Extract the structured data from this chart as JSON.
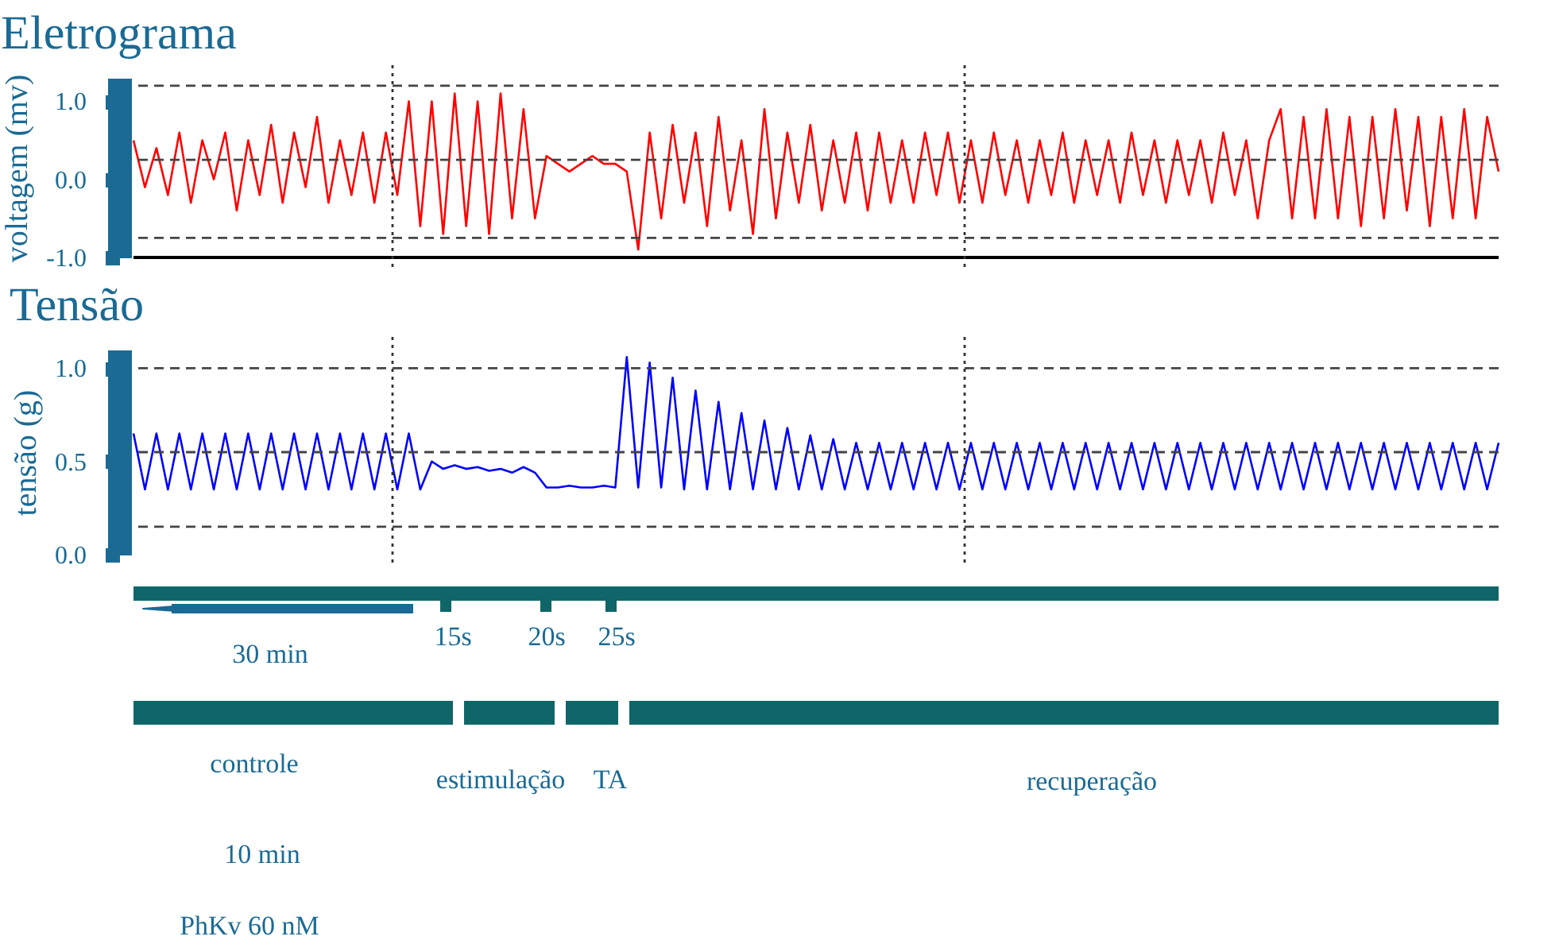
{
  "chart_data": [
    {
      "type": "line",
      "title": "Eletrograma",
      "ylabel": "voltagem (mv)",
      "categories": [
        null,
        null,
        null,
        null,
        null,
        null,
        null,
        null,
        null,
        null,
        null,
        null,
        null,
        null,
        null,
        null,
        null,
        null,
        null,
        null,
        null,
        null,
        null,
        null,
        null,
        null,
        null,
        null,
        null,
        null,
        null,
        null,
        null,
        null,
        null,
        null,
        null,
        null,
        null,
        null,
        null,
        null,
        null,
        null,
        null,
        null,
        null,
        null,
        null,
        null,
        null,
        null,
        null,
        null,
        null,
        null,
        null,
        null,
        null,
        null,
        null,
        null,
        null,
        null,
        null,
        null,
        null,
        null,
        null,
        null,
        null,
        null,
        null,
        null,
        null,
        null,
        null,
        null,
        null,
        null,
        null,
        null,
        null,
        null,
        null,
        null,
        null,
        null,
        null,
        null,
        null,
        null,
        null,
        null,
        null,
        null,
        null,
        null,
        null,
        null,
        null,
        null,
        null,
        null,
        null,
        null,
        null,
        null,
        null,
        null,
        null,
        null,
        null,
        null,
        null,
        null,
        null,
        null,
        null,
        null
      ],
      "series": [
        {
          "color": "#ff0000",
          "values": [
            0.5,
            -0.1,
            0.4,
            -0.2,
            0.6,
            -0.3,
            0.5,
            0.0,
            0.6,
            -0.4,
            0.5,
            -0.2,
            0.7,
            -0.3,
            0.6,
            -0.1,
            0.8,
            -0.3,
            0.5,
            -0.2,
            0.6,
            -0.3,
            0.6,
            -0.2,
            1.0,
            -0.6,
            1.0,
            -0.7,
            1.1,
            -0.6,
            1.0,
            -0.7,
            1.1,
            -0.5,
            0.9,
            -0.5,
            0.3,
            0.2,
            0.1,
            0.2,
            0.3,
            0.2,
            0.2,
            0.1,
            -0.9,
            0.6,
            -0.5,
            0.7,
            -0.3,
            0.6,
            -0.6,
            0.8,
            -0.4,
            0.5,
            -0.7,
            0.9,
            -0.5,
            0.6,
            -0.3,
            0.7,
            -0.4,
            0.5,
            -0.3,
            0.6,
            -0.4,
            0.6,
            -0.3,
            0.5,
            -0.3,
            0.6,
            -0.2,
            0.6,
            -0.3,
            0.5,
            -0.3,
            0.6,
            -0.2,
            0.5,
            -0.3,
            0.5,
            -0.2,
            0.6,
            -0.3,
            0.5,
            -0.2,
            0.5,
            -0.3,
            0.6,
            -0.2,
            0.5,
            -0.3,
            0.5,
            -0.2,
            0.5,
            -0.3,
            0.6,
            -0.2,
            0.5,
            -0.5,
            0.5,
            0.9,
            -0.5,
            0.8,
            -0.5,
            0.9,
            -0.5,
            0.8,
            -0.6,
            0.8,
            -0.5,
            0.9,
            -0.4,
            0.8,
            -0.6,
            0.8,
            -0.5,
            0.9,
            -0.5,
            0.8,
            0.1
          ]
        }
      ],
      "ylim": [
        -1.0,
        1.3
      ],
      "yticks": [
        {
          "value": 1,
          "label": "1.0"
        },
        {
          "value": 0,
          "label": "0.0"
        },
        {
          "value": -1,
          "label": "-1.0"
        }
      ],
      "ref_lines": [
        {
          "axis": "y",
          "value": 1.2,
          "line_style": "dashed",
          "color": "#444444"
        },
        {
          "axis": "y",
          "value": 0.25,
          "line_style": "dashed",
          "color": "#444444"
        },
        {
          "axis": "y",
          "value": -0.75,
          "line_style": "dashed",
          "color": "#444444"
        },
        {
          "axis": "y",
          "value": -1.0,
          "line_style": "solid",
          "color": "#000000"
        }
      ],
      "tick_labels": "y",
      "line_style": "solid"
    },
    {
      "type": "line",
      "title": "Tensão",
      "ylabel": "tensão (g)",
      "categories": [
        null,
        null,
        null,
        null,
        null,
        null,
        null,
        null,
        null,
        null,
        null,
        null,
        null,
        null,
        null,
        null,
        null,
        null,
        null,
        null,
        null,
        null,
        null,
        null,
        null,
        null,
        null,
        null,
        null,
        null,
        null,
        null,
        null,
        null,
        null,
        null,
        null,
        null,
        null,
        null,
        null,
        null,
        null,
        null,
        null,
        null,
        null,
        null,
        null,
        null,
        null,
        null,
        null,
        null,
        null,
        null,
        null,
        null,
        null,
        null,
        null,
        null,
        null,
        null,
        null,
        null,
        null,
        null,
        null,
        null,
        null,
        null,
        null,
        null,
        null,
        null,
        null,
        null,
        null,
        null,
        null,
        null,
        null,
        null,
        null,
        null,
        null,
        null,
        null,
        null,
        null,
        null,
        null,
        null,
        null,
        null,
        null,
        null,
        null,
        null,
        null,
        null,
        null,
        null,
        null,
        null,
        null,
        null,
        null,
        null,
        null,
        null,
        null,
        null,
        null,
        null,
        null,
        null,
        null,
        null
      ],
      "series": [
        {
          "color": "#0000ff",
          "values": [
            0.65,
            0.35,
            0.65,
            0.35,
            0.65,
            0.35,
            0.65,
            0.35,
            0.65,
            0.35,
            0.65,
            0.35,
            0.65,
            0.35,
            0.65,
            0.35,
            0.65,
            0.35,
            0.65,
            0.35,
            0.65,
            0.35,
            0.65,
            0.35,
            0.65,
            0.35,
            0.5,
            0.46,
            0.48,
            0.46,
            0.47,
            0.45,
            0.46,
            0.44,
            0.47,
            0.44,
            0.36,
            0.36,
            0.37,
            0.36,
            0.36,
            0.37,
            0.36,
            1.06,
            0.36,
            1.03,
            0.36,
            0.95,
            0.35,
            0.88,
            0.35,
            0.82,
            0.35,
            0.76,
            0.35,
            0.72,
            0.35,
            0.68,
            0.35,
            0.64,
            0.35,
            0.62,
            0.35,
            0.6,
            0.35,
            0.6,
            0.35,
            0.6,
            0.35,
            0.6,
            0.35,
            0.6,
            0.35,
            0.6,
            0.35,
            0.6,
            0.35,
            0.6,
            0.35,
            0.6,
            0.35,
            0.6,
            0.35,
            0.6,
            0.35,
            0.6,
            0.35,
            0.6,
            0.35,
            0.6,
            0.35,
            0.6,
            0.35,
            0.6,
            0.35,
            0.6,
            0.35,
            0.6,
            0.35,
            0.6,
            0.35,
            0.6,
            0.35,
            0.6,
            0.35,
            0.6,
            0.35,
            0.6,
            0.35,
            0.6,
            0.35,
            0.6,
            0.35,
            0.6,
            0.35,
            0.6,
            0.35,
            0.6,
            0.35,
            0.6
          ]
        }
      ],
      "ylim": [
        0,
        1.1
      ],
      "yticks": [
        {
          "value": 1,
          "label": "1.0"
        },
        {
          "value": 0.5,
          "label": "0.5"
        },
        {
          "value": 0,
          "label": "0.0"
        }
      ],
      "ref_lines": [
        {
          "axis": "y",
          "value": 1.0,
          "line_style": "dashed",
          "color": "#444444"
        },
        {
          "axis": "y",
          "value": 0.55,
          "line_style": "dashed",
          "color": "#444444"
        },
        {
          "axis": "y",
          "value": 0.15,
          "line_style": "dashed",
          "color": "#444444"
        }
      ],
      "tick_labels": "y",
      "line_style": "solid"
    },
    {
      "type": "other",
      "annotations": [
        "30 min",
        "15s",
        "20s",
        "25s",
        "controle",
        "estimulação",
        "TA",
        "recuperação",
        "10 min",
        "PhKv 60 nM"
      ]
    }
  ]
}
